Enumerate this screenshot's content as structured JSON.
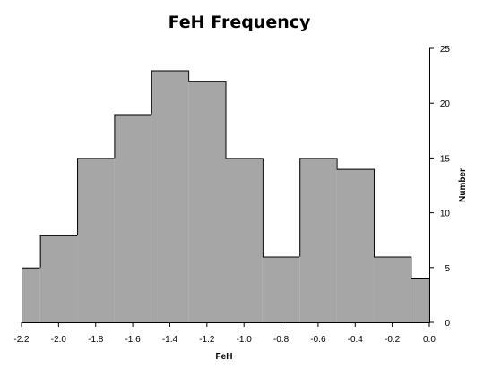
{
  "chart_data": {
    "type": "bar",
    "title": "FeH Frequency",
    "xlabel": "FeH",
    "ylabel": "Number",
    "bin_edges": [
      -2.2,
      -2.1,
      -1.9,
      -1.7,
      -1.5,
      -1.3,
      -1.1,
      -0.9,
      -0.7,
      -0.5,
      -0.3,
      -0.1,
      0.0
    ],
    "values": [
      5,
      8,
      15,
      19,
      23,
      22,
      15,
      6,
      15,
      14,
      6,
      4
    ],
    "xlim": [
      -2.2,
      0.0
    ],
    "ylim": [
      0,
      25
    ],
    "x_ticks": [
      "-2.2",
      "-2.0",
      "-1.8",
      "-1.6",
      "-1.4",
      "-1.2",
      "-1.0",
      "-0.8",
      "-0.6",
      "-0.4",
      "-0.2",
      "0.0"
    ],
    "y_ticks": [
      "0",
      "5",
      "10",
      "15",
      "20",
      "25"
    ],
    "y_axis_side": "right",
    "grid": false,
    "legend": "none",
    "bar_color": "#a6a6a6",
    "plot_background": "#ffffff"
  }
}
